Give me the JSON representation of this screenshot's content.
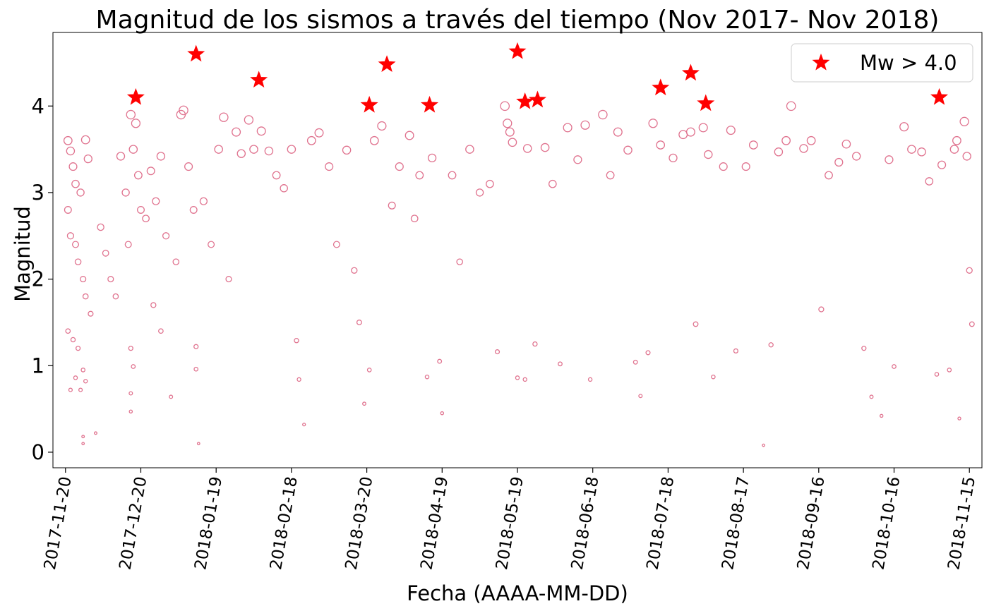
{
  "chart_data": {
    "type": "scatter",
    "title": "Magnitud de los sismos a través del tiempo (Nov 2017- Nov 2018)",
    "xlabel": "Fecha (AAAA-MM-DD)",
    "ylabel": "Magnitud",
    "xlim": [
      "2017-11-15",
      "2018-11-20"
    ],
    "ylim": [
      -0.18,
      4.85
    ],
    "x_ticks": [
      "2017-11-20",
      "2017-12-20",
      "2018-01-19",
      "2018-02-18",
      "2018-03-20",
      "2018-04-19",
      "2018-05-19",
      "2018-06-18",
      "2018-07-18",
      "2018-08-17",
      "2018-09-16",
      "2018-10-16",
      "2018-11-15"
    ],
    "x_tick_rotation_deg": 80,
    "y_ticks": [
      0,
      1,
      2,
      3,
      4
    ],
    "grid": false,
    "legend": {
      "placement": "top-right",
      "entries": [
        {
          "label": "Mw > 4.0",
          "marker": "star",
          "color": "#ff0000"
        }
      ]
    },
    "marker_size_encodes": "magnitude",
    "colors": {
      "events": "#e0738f",
      "strong": "#ff0000"
    },
    "series": [
      {
        "marker": "open-circle",
        "color": "#e0738f",
        "points": [
          [
            "2017-11-21",
            3.6
          ],
          [
            "2017-11-22",
            3.48
          ],
          [
            "2017-11-23",
            3.3
          ],
          [
            "2017-11-24",
            3.1
          ],
          [
            "2017-11-26",
            3.0
          ],
          [
            "2017-11-28",
            3.61
          ],
          [
            "2017-11-29",
            3.39
          ],
          [
            "2017-11-21",
            2.8
          ],
          [
            "2017-11-22",
            2.5
          ],
          [
            "2017-11-24",
            2.4
          ],
          [
            "2017-11-25",
            2.2
          ],
          [
            "2017-11-27",
            2.0
          ],
          [
            "2017-11-28",
            1.8
          ],
          [
            "2017-11-30",
            1.6
          ],
          [
            "2017-11-21",
            1.4
          ],
          [
            "2017-11-23",
            1.3
          ],
          [
            "2017-11-25",
            1.2
          ],
          [
            "2017-11-27",
            0.95
          ],
          [
            "2017-11-22",
            0.72
          ],
          [
            "2017-11-26",
            0.72
          ],
          [
            "2017-11-28",
            0.82
          ],
          [
            "2017-11-24",
            0.86
          ],
          [
            "2017-11-27",
            0.18
          ],
          [
            "2017-11-27",
            0.1
          ],
          [
            "2017-12-02",
            0.22
          ],
          [
            "2017-12-04",
            2.6
          ],
          [
            "2017-12-06",
            2.3
          ],
          [
            "2017-12-08",
            2.0
          ],
          [
            "2017-12-10",
            1.8
          ],
          [
            "2017-12-12",
            3.42
          ],
          [
            "2017-12-14",
            3.0
          ],
          [
            "2017-12-15",
            2.4
          ],
          [
            "2017-12-16",
            3.9
          ],
          [
            "2017-12-17",
            3.5
          ],
          [
            "2017-12-18",
            3.8
          ],
          [
            "2017-12-19",
            3.2
          ],
          [
            "2017-12-20",
            2.8
          ],
          [
            "2017-12-16",
            1.2
          ],
          [
            "2017-12-17",
            0.99
          ],
          [
            "2017-12-16",
            0.68
          ],
          [
            "2017-12-16",
            0.47
          ],
          [
            "2017-12-22",
            2.7
          ],
          [
            "2017-12-24",
            3.25
          ],
          [
            "2017-12-26",
            2.9
          ],
          [
            "2017-12-28",
            3.42
          ],
          [
            "2017-12-30",
            2.5
          ],
          [
            "2017-12-25",
            1.7
          ],
          [
            "2017-12-28",
            1.4
          ],
          [
            "2018-01-01",
            0.64
          ],
          [
            "2018-01-03",
            2.2
          ],
          [
            "2018-01-05",
            3.9
          ],
          [
            "2018-01-06",
            3.95
          ],
          [
            "2018-01-08",
            3.3
          ],
          [
            "2018-01-10",
            2.8
          ],
          [
            "2018-01-11",
            1.22
          ],
          [
            "2018-01-11",
            0.96
          ],
          [
            "2018-01-12",
            0.1
          ],
          [
            "2018-01-14",
            2.9
          ],
          [
            "2018-01-17",
            2.4
          ],
          [
            "2018-01-20",
            3.5
          ],
          [
            "2018-01-22",
            3.87
          ],
          [
            "2018-01-24",
            2.0
          ],
          [
            "2018-01-27",
            3.7
          ],
          [
            "2018-01-29",
            3.45
          ],
          [
            "2018-02-01",
            3.84
          ],
          [
            "2018-02-03",
            3.5
          ],
          [
            "2018-02-06",
            3.71
          ],
          [
            "2018-02-09",
            3.48
          ],
          [
            "2018-02-12",
            3.2
          ],
          [
            "2018-02-15",
            3.05
          ],
          [
            "2018-02-18",
            3.5
          ],
          [
            "2018-02-20",
            1.29
          ],
          [
            "2018-02-21",
            0.84
          ],
          [
            "2018-02-23",
            0.32
          ],
          [
            "2018-02-26",
            3.6
          ],
          [
            "2018-03-01",
            3.69
          ],
          [
            "2018-03-05",
            3.3
          ],
          [
            "2018-03-08",
            2.4
          ],
          [
            "2018-03-12",
            3.49
          ],
          [
            "2018-03-15",
            2.1
          ],
          [
            "2018-03-17",
            1.5
          ],
          [
            "2018-03-19",
            0.56
          ],
          [
            "2018-03-21",
            0.95
          ],
          [
            "2018-03-23",
            3.6
          ],
          [
            "2018-03-26",
            3.77
          ],
          [
            "2018-03-30",
            2.85
          ],
          [
            "2018-04-02",
            3.3
          ],
          [
            "2018-04-06",
            3.66
          ],
          [
            "2018-04-08",
            2.7
          ],
          [
            "2018-04-10",
            3.2
          ],
          [
            "2018-04-13",
            0.87
          ],
          [
            "2018-04-15",
            3.4
          ],
          [
            "2018-04-18",
            1.05
          ],
          [
            "2018-04-19",
            0.45
          ],
          [
            "2018-04-23",
            3.2
          ],
          [
            "2018-04-26",
            2.2
          ],
          [
            "2018-04-30",
            3.5
          ],
          [
            "2018-05-04",
            3.0
          ],
          [
            "2018-05-08",
            3.1
          ],
          [
            "2018-05-11",
            1.16
          ],
          [
            "2018-05-14",
            4.0
          ],
          [
            "2018-05-15",
            3.8
          ],
          [
            "2018-05-16",
            3.7
          ],
          [
            "2018-05-17",
            3.58
          ],
          [
            "2018-05-19",
            0.86
          ],
          [
            "2018-05-22",
            0.84
          ],
          [
            "2018-05-23",
            3.51
          ],
          [
            "2018-05-26",
            1.25
          ],
          [
            "2018-05-30",
            3.52
          ],
          [
            "2018-06-02",
            3.1
          ],
          [
            "2018-06-05",
            1.02
          ],
          [
            "2018-06-08",
            3.75
          ],
          [
            "2018-06-12",
            3.38
          ],
          [
            "2018-06-15",
            3.78
          ],
          [
            "2018-06-17",
            0.84
          ],
          [
            "2018-06-22",
            3.9
          ],
          [
            "2018-06-25",
            3.2
          ],
          [
            "2018-06-28",
            3.7
          ],
          [
            "2018-07-02",
            3.49
          ],
          [
            "2018-07-05",
            1.04
          ],
          [
            "2018-07-07",
            0.65
          ],
          [
            "2018-07-10",
            1.15
          ],
          [
            "2018-07-12",
            3.8
          ],
          [
            "2018-07-15",
            3.55
          ],
          [
            "2018-07-20",
            3.4
          ],
          [
            "2018-07-24",
            3.67
          ],
          [
            "2018-07-27",
            3.7
          ],
          [
            "2018-07-29",
            1.48
          ],
          [
            "2018-08-01",
            3.75
          ],
          [
            "2018-08-03",
            3.44
          ],
          [
            "2018-08-05",
            0.87
          ],
          [
            "2018-08-09",
            3.3
          ],
          [
            "2018-08-12",
            3.72
          ],
          [
            "2018-08-14",
            1.17
          ],
          [
            "2018-08-18",
            3.3
          ],
          [
            "2018-08-21",
            3.55
          ],
          [
            "2018-08-25",
            0.08
          ],
          [
            "2018-08-28",
            1.24
          ],
          [
            "2018-08-31",
            3.47
          ],
          [
            "2018-09-05",
            4.0
          ],
          [
            "2018-09-03",
            3.6
          ],
          [
            "2018-09-10",
            3.51
          ],
          [
            "2018-09-13",
            3.6
          ],
          [
            "2018-09-17",
            1.65
          ],
          [
            "2018-09-20",
            3.2
          ],
          [
            "2018-09-24",
            3.35
          ],
          [
            "2018-09-27",
            3.56
          ],
          [
            "2018-10-01",
            3.42
          ],
          [
            "2018-10-04",
            1.2
          ],
          [
            "2018-10-07",
            0.64
          ],
          [
            "2018-10-11",
            0.42
          ],
          [
            "2018-10-14",
            3.38
          ],
          [
            "2018-10-16",
            0.99
          ],
          [
            "2018-10-20",
            3.76
          ],
          [
            "2018-10-23",
            3.5
          ],
          [
            "2018-10-27",
            3.47
          ],
          [
            "2018-10-30",
            3.13
          ],
          [
            "2018-11-02",
            0.9
          ],
          [
            "2018-11-04",
            3.32
          ],
          [
            "2018-11-07",
            0.95
          ],
          [
            "2018-11-09",
            3.5
          ],
          [
            "2018-11-10",
            3.6
          ],
          [
            "2018-11-11",
            0.39
          ],
          [
            "2018-11-13",
            3.82
          ],
          [
            "2018-11-14",
            3.42
          ],
          [
            "2018-11-15",
            2.1
          ],
          [
            "2018-11-16",
            1.48
          ]
        ]
      },
      {
        "name": "Mw > 4.0",
        "marker": "star",
        "color": "#ff0000",
        "points": [
          [
            "2017-12-18",
            4.1
          ],
          [
            "2018-01-11",
            4.6
          ],
          [
            "2018-02-05",
            4.3
          ],
          [
            "2018-03-21",
            4.01
          ],
          [
            "2018-03-28",
            4.48
          ],
          [
            "2018-04-14",
            4.01
          ],
          [
            "2018-05-19",
            4.63
          ],
          [
            "2018-05-22",
            4.05
          ],
          [
            "2018-05-27",
            4.07
          ],
          [
            "2018-07-15",
            4.21
          ],
          [
            "2018-07-27",
            4.38
          ],
          [
            "2018-08-02",
            4.03
          ],
          [
            "2018-11-03",
            4.1
          ]
        ]
      }
    ]
  }
}
